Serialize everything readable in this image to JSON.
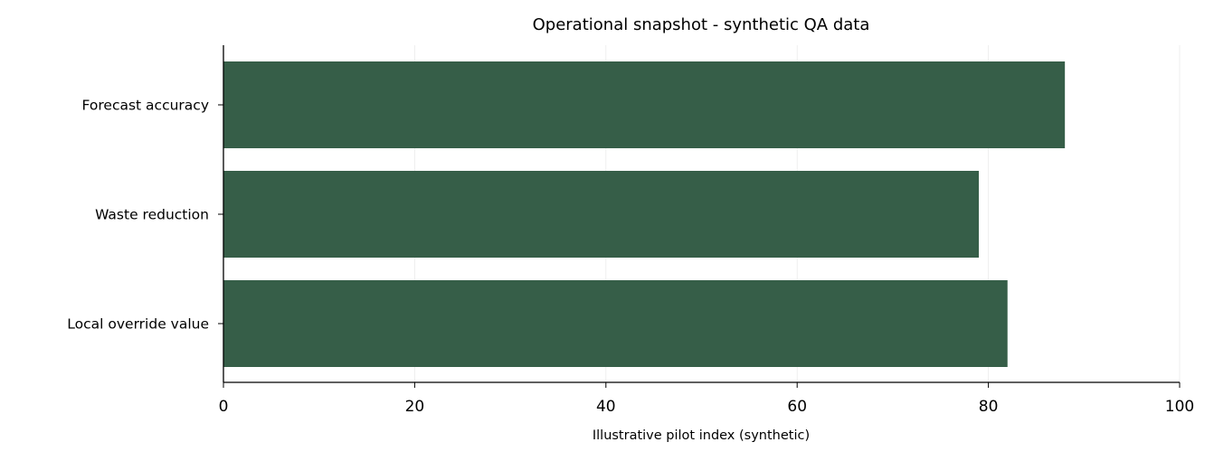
{
  "chart_data": {
    "type": "bar",
    "orientation": "horizontal",
    "title": "Operational snapshot - synthetic QA data",
    "xlabel": "Illustrative pilot index (synthetic)",
    "categories": [
      "Forecast accuracy",
      "Waste reduction",
      "Local override value"
    ],
    "values": [
      88,
      79,
      82
    ],
    "color": "#365e48",
    "xlim": [
      0,
      100
    ],
    "xticks": [
      0,
      20,
      40,
      60,
      80,
      100
    ],
    "grid": true
  }
}
